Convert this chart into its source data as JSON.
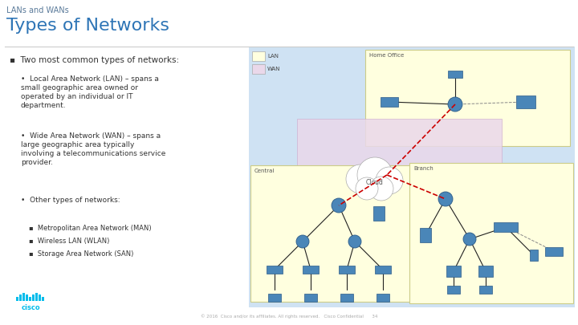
{
  "bg_color": "#ffffff",
  "title_small": "LANs and WANs",
  "title_large": "Types of Networks",
  "title_small_color": "#5a7a9a",
  "title_large_color": "#2e75b6",
  "title_small_size": 7,
  "title_large_size": 16,
  "text_color": "#333333",
  "footer_color": "#aaaaaa",
  "footer_text": "© 2016  Cisco and/or its affiliates. All rights reserved.   Cisco Confidential      34",
  "cisco_logo_color": "#00bceb",
  "right_bg_color": "#cfe2f3",
  "lan_color": "#ffffdf",
  "wan_color": "#ead8ea",
  "cloud_color": "#f0e8f0",
  "line_color": "#cccccc",
  "bullet1_size": 7.5,
  "bullet2_size": 6.5,
  "bullet3_size": 6.0,
  "bullets_l1": [
    "Two most common types of networks:"
  ],
  "bullets_l2": [
    "Local Area Network (LAN) – spans a\nsmall geographic area owned or\noperated by an individual or IT\ndepartment.",
    "Wide Area Network (WAN) – spans a\nlarge geographic area typically\ninvolving a telecommunications service\nprovider.",
    "Other types of networks:"
  ],
  "bullets_l3": [
    "Metropolitan Area Network (MAN)",
    "Wireless LAN (WLAN)",
    "Storage Area Network (SAN)"
  ],
  "device_color": "#4a86b8",
  "wan_line_color": "#cc0000"
}
